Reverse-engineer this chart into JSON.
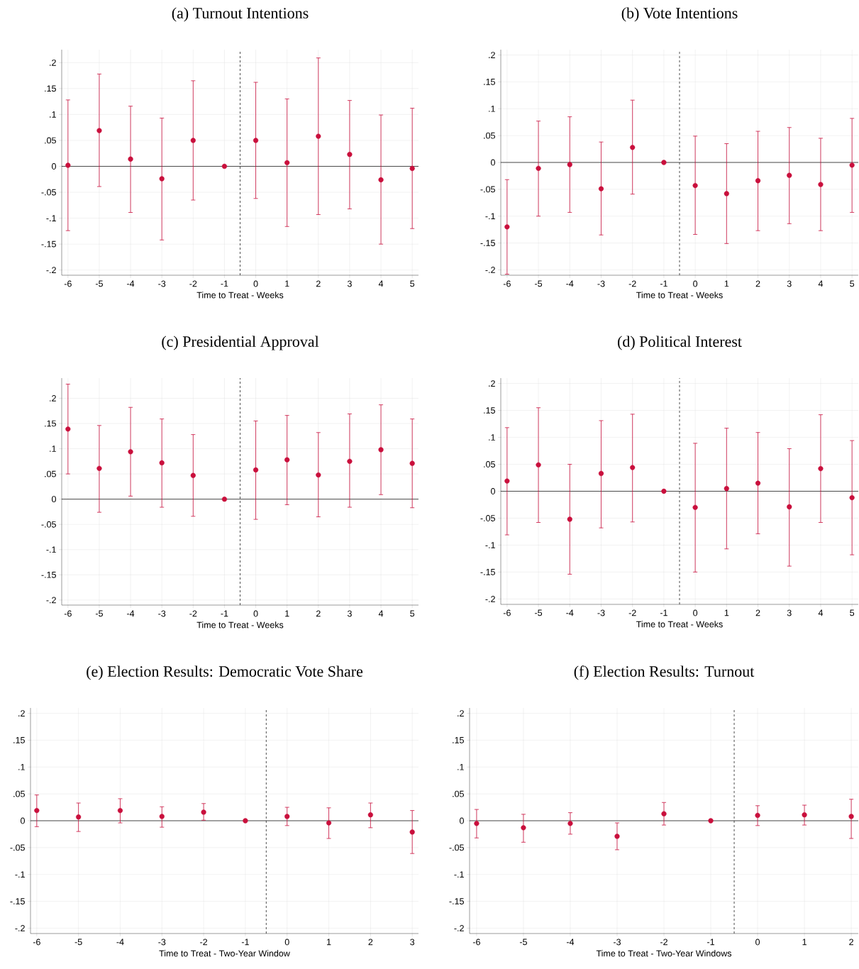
{
  "chart_data": [
    {
      "type": "scatter",
      "title": "(a) Turnout Intentions",
      "xlabel": "Time to Treat - Weeks",
      "grid": true,
      "color": "#c90f3c",
      "x": [
        -6,
        -5,
        -4,
        -3,
        -2,
        -1,
        0,
        1,
        2,
        3,
        4,
        5
      ],
      "values": [
        0.002,
        0.069,
        0.014,
        -0.024,
        0.05,
        0,
        0.05,
        0.007,
        0.058,
        0.023,
        -0.026,
        -0.004
      ],
      "errors": [
        [
          -0.124,
          0.128
        ],
        [
          -0.039,
          0.178
        ],
        [
          -0.089,
          0.116
        ],
        [
          -0.142,
          0.093
        ],
        [
          -0.065,
          0.165
        ],
        null,
        [
          -0.062,
          0.162
        ],
        [
          -0.116,
          0.13
        ],
        [
          -0.093,
          0.209
        ],
        [
          -0.082,
          0.127
        ],
        [
          -0.15,
          0.099
        ],
        [
          -0.12,
          0.112
        ]
      ],
      "xlim": [
        -6.2,
        5.2
      ],
      "ylim": [
        -0.21,
        0.225
      ],
      "xticks": [
        -6,
        -5,
        -4,
        -3,
        -2,
        -1,
        0,
        1,
        2,
        3,
        4,
        5
      ],
      "yticks": [
        {
          "value": -0.2,
          "label": "-.2"
        },
        {
          "value": -0.15,
          "label": "-.15"
        },
        {
          "value": -0.1,
          "label": "-.1"
        },
        {
          "value": -0.05,
          "label": "-.05"
        },
        0,
        {
          "value": 0.05,
          "label": ".05"
        },
        {
          "value": 0.1,
          "label": ".1"
        },
        {
          "value": 0.15,
          "label": ".15"
        },
        {
          "value": 0.2,
          "label": ".2"
        }
      ],
      "ref_lines": [
        {
          "axis": "y",
          "value": 0,
          "line_style": "solid",
          "color": "#000000"
        },
        {
          "axis": "x",
          "value": -0.5,
          "line_style": "dashed",
          "color": "#000000"
        }
      ]
    },
    {
      "type": "scatter",
      "title": "(b) Vote Intentions",
      "xlabel": "Time to Treat - Weeks",
      "grid": true,
      "color": "#c90f3c",
      "x": [
        -6,
        -5,
        -4,
        -3,
        -2,
        -1,
        0,
        1,
        2,
        3,
        4,
        5
      ],
      "values": [
        -0.12,
        -0.011,
        -0.004,
        -0.049,
        0.028,
        0,
        -0.043,
        -0.058,
        -0.034,
        -0.024,
        -0.041,
        -0.005
      ],
      "errors": [
        [
          -0.208,
          -0.032
        ],
        [
          -0.1,
          0.077
        ],
        [
          -0.093,
          0.085
        ],
        [
          -0.135,
          0.038
        ],
        [
          -0.059,
          0.116
        ],
        null,
        [
          -0.134,
          0.049
        ],
        [
          -0.151,
          0.035
        ],
        [
          -0.127,
          0.058
        ],
        [
          -0.114,
          0.065
        ],
        [
          -0.127,
          0.045
        ],
        [
          -0.093,
          0.082
        ]
      ],
      "xlim": [
        -6.2,
        5.2
      ],
      "ylim": [
        -0.21,
        0.21
      ],
      "xticks": [
        -6,
        -5,
        -4,
        -3,
        -2,
        -1,
        0,
        1,
        2,
        3,
        4,
        5
      ],
      "yticks": [
        {
          "value": -0.2,
          "label": "-.2"
        },
        {
          "value": -0.15,
          "label": "-.15"
        },
        {
          "value": -0.1,
          "label": "-.1"
        },
        {
          "value": -0.05,
          "label": "-.05"
        },
        0,
        {
          "value": 0.05,
          "label": ".05"
        },
        {
          "value": 0.1,
          "label": ".1"
        },
        {
          "value": 0.15,
          "label": ".15"
        },
        {
          "value": 0.2,
          "label": ".2"
        }
      ],
      "ref_lines": [
        {
          "axis": "y",
          "value": 0,
          "line_style": "solid",
          "color": "#000000"
        },
        {
          "axis": "x",
          "value": -0.5,
          "line_style": "dashed",
          "color": "#000000"
        }
      ]
    },
    {
      "type": "scatter",
      "title": "(c) Presidential Approval",
      "xlabel": "Time to Treat - Weeks",
      "grid": true,
      "color": "#c90f3c",
      "x": [
        -6,
        -5,
        -4,
        -3,
        -2,
        -1,
        0,
        1,
        2,
        3,
        4,
        5
      ],
      "values": [
        0.139,
        0.061,
        0.094,
        0.072,
        0.047,
        0,
        0.058,
        0.078,
        0.048,
        0.075,
        0.098,
        0.071
      ],
      "errors": [
        [
          0.05,
          0.228
        ],
        [
          -0.026,
          0.146
        ],
        [
          0.006,
          0.182
        ],
        [
          -0.016,
          0.159
        ],
        [
          -0.034,
          0.128
        ],
        null,
        [
          -0.04,
          0.155
        ],
        [
          -0.011,
          0.166
        ],
        [
          -0.035,
          0.132
        ],
        [
          -0.016,
          0.169
        ],
        [
          0.009,
          0.187
        ],
        [
          -0.017,
          0.159
        ]
      ],
      "xlim": [
        -6.2,
        5.2
      ],
      "ylim": [
        -0.21,
        0.24
      ],
      "xticks": [
        -6,
        -5,
        -4,
        -3,
        -2,
        -1,
        0,
        1,
        2,
        3,
        4,
        5
      ],
      "yticks": [
        {
          "value": -0.2,
          "label": "-.2"
        },
        {
          "value": -0.15,
          "label": "-.15"
        },
        {
          "value": -0.1,
          "label": "-.1"
        },
        {
          "value": -0.05,
          "label": "-.05"
        },
        0,
        {
          "value": 0.05,
          "label": ".05"
        },
        {
          "value": 0.1,
          "label": ".1"
        },
        {
          "value": 0.15,
          "label": ".15"
        },
        {
          "value": 0.2,
          "label": ".2"
        }
      ],
      "ref_lines": [
        {
          "axis": "y",
          "value": 0,
          "line_style": "solid",
          "color": "#000000"
        },
        {
          "axis": "x",
          "value": -0.5,
          "line_style": "dashed",
          "color": "#000000"
        }
      ]
    },
    {
      "type": "scatter",
      "title": "(d) Political Interest",
      "xlabel": "Time to Treat - Weeks",
      "grid": true,
      "color": "#c90f3c",
      "x": [
        -6,
        -5,
        -4,
        -3,
        -2,
        -1,
        0,
        1,
        2,
        3,
        4,
        5
      ],
      "values": [
        0.019,
        0.049,
        -0.052,
        0.033,
        0.044,
        0,
        -0.03,
        0.005,
        0.015,
        -0.029,
        0.042,
        -0.012
      ],
      "errors": [
        [
          -0.081,
          0.118
        ],
        [
          -0.058,
          0.155
        ],
        [
          -0.154,
          0.05
        ],
        [
          -0.068,
          0.131
        ],
        [
          -0.057,
          0.143
        ],
        null,
        [
          -0.15,
          0.089
        ],
        [
          -0.107,
          0.117
        ],
        [
          -0.079,
          0.109
        ],
        [
          -0.139,
          0.079
        ],
        [
          -0.058,
          0.142
        ],
        [
          -0.118,
          0.094
        ]
      ],
      "xlim": [
        -6.2,
        5.2
      ],
      "ylim": [
        -0.21,
        0.21
      ],
      "xticks": [
        -6,
        -5,
        -4,
        -3,
        -2,
        -1,
        0,
        1,
        2,
        3,
        4,
        5
      ],
      "yticks": [
        {
          "value": -0.2,
          "label": "-.2"
        },
        {
          "value": -0.15,
          "label": "-.15"
        },
        {
          "value": -0.1,
          "label": "-.1"
        },
        {
          "value": -0.05,
          "label": "-.05"
        },
        0,
        {
          "value": 0.05,
          "label": ".05"
        },
        {
          "value": 0.1,
          "label": ".1"
        },
        {
          "value": 0.15,
          "label": ".15"
        },
        {
          "value": 0.2,
          "label": ".2"
        }
      ],
      "ref_lines": [
        {
          "axis": "y",
          "value": 0,
          "line_style": "solid",
          "color": "#000000"
        },
        {
          "axis": "x",
          "value": -0.5,
          "line_style": "dashed",
          "color": "#000000"
        }
      ]
    },
    {
      "type": "scatter",
      "title": "(e) Election Results: Democratic Vote Share",
      "xlabel": "Time to Treat - Two-Year Window",
      "grid": true,
      "color": "#c90f3c",
      "x": [
        -6,
        -5,
        -4,
        -3,
        -2,
        -1,
        0,
        1,
        2,
        3
      ],
      "values": [
        0.019,
        0.007,
        0.019,
        0.008,
        0.016,
        0,
        0.008,
        -0.004,
        0.011,
        -0.021
      ],
      "errors": [
        [
          -0.011,
          0.048
        ],
        [
          -0.02,
          0.033
        ],
        [
          -0.004,
          0.041
        ],
        [
          -0.012,
          0.026
        ],
        [
          0.001,
          0.032
        ],
        null,
        [
          -0.009,
          0.025
        ],
        [
          -0.033,
          0.024
        ],
        [
          -0.013,
          0.033
        ],
        [
          -0.061,
          0.019
        ]
      ],
      "xlim": [
        -6.15,
        3.15
      ],
      "ylim": [
        -0.21,
        0.21
      ],
      "xticks": [
        -6,
        -5,
        -4,
        -3,
        -2,
        -1,
        0,
        1,
        2,
        3
      ],
      "yticks": [
        {
          "value": -0.2,
          "label": "-.2"
        },
        {
          "value": -0.15,
          "label": "-.15"
        },
        {
          "value": -0.1,
          "label": "-.1"
        },
        {
          "value": -0.05,
          "label": "-.05"
        },
        0,
        {
          "value": 0.05,
          "label": ".05"
        },
        {
          "value": 0.1,
          "label": ".1"
        },
        {
          "value": 0.15,
          "label": ".15"
        },
        {
          "value": 0.2,
          "label": ".2"
        }
      ],
      "ref_lines": [
        {
          "axis": "y",
          "value": 0,
          "line_style": "solid",
          "color": "#000000"
        },
        {
          "axis": "x",
          "value": -0.5,
          "line_style": "dashed",
          "color": "#000000"
        }
      ]
    },
    {
      "type": "scatter",
      "title": "(f) Election Results: Turnout",
      "xlabel": "Time to Treat - Two-Year Windows",
      "grid": true,
      "color": "#c90f3c",
      "x": [
        -6,
        -5,
        -4,
        -3,
        -2,
        -1,
        0,
        1,
        2
      ],
      "values": [
        -0.005,
        -0.013,
        -0.005,
        -0.029,
        0.013,
        0,
        0.01,
        0.011,
        0.008
      ],
      "errors": [
        [
          -0.032,
          0.021
        ],
        [
          -0.04,
          0.012
        ],
        [
          -0.025,
          0.015
        ],
        [
          -0.054,
          -0.004
        ],
        [
          -0.008,
          0.034
        ],
        null,
        [
          -0.009,
          0.028
        ],
        [
          -0.008,
          0.029
        ],
        [
          -0.033,
          0.04
        ]
      ],
      "xlim": [
        -6.15,
        2.15
      ],
      "ylim": [
        -0.21,
        0.21
      ],
      "xticks": [
        -6,
        -5,
        -4,
        -3,
        -2,
        -1,
        0,
        1,
        2
      ],
      "yticks": [
        {
          "value": -0.2,
          "label": "-.2"
        },
        {
          "value": -0.15,
          "label": "-.15"
        },
        {
          "value": -0.1,
          "label": "-.1"
        },
        {
          "value": -0.05,
          "label": "-.05"
        },
        0,
        {
          "value": 0.05,
          "label": ".05"
        },
        {
          "value": 0.1,
          "label": ".1"
        },
        {
          "value": 0.15,
          "label": ".15"
        },
        {
          "value": 0.2,
          "label": ".2"
        }
      ],
      "ref_lines": [
        {
          "axis": "y",
          "value": 0,
          "line_style": "solid",
          "color": "#000000"
        },
        {
          "axis": "x",
          "value": -0.5,
          "line_style": "dashed",
          "color": "#000000"
        }
      ]
    }
  ]
}
